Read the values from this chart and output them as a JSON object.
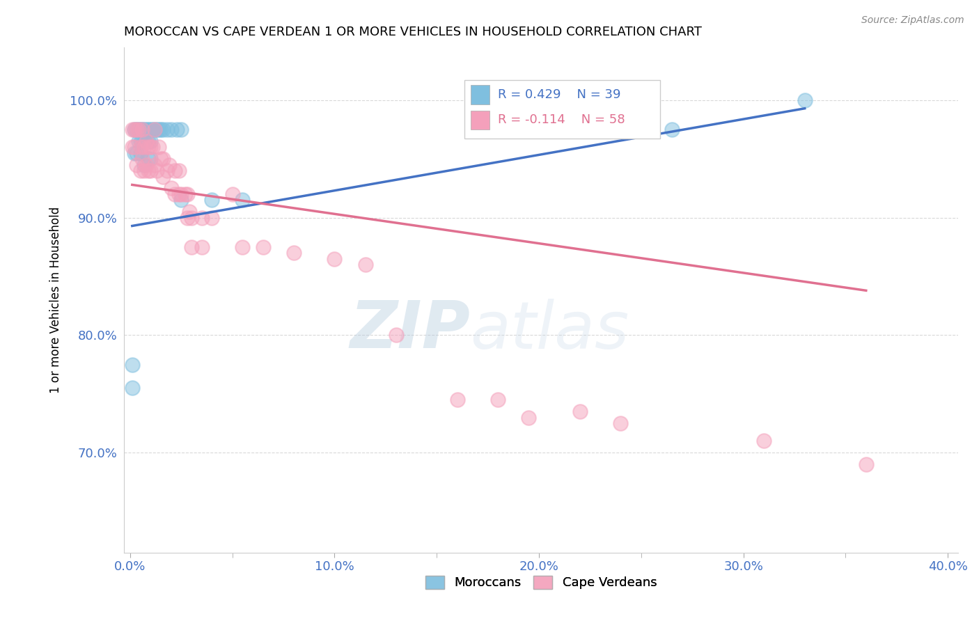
{
  "title": "MOROCCAN VS CAPE VERDEAN 1 OR MORE VEHICLES IN HOUSEHOLD CORRELATION CHART",
  "source": "Source: ZipAtlas.com",
  "xlabel_ticks": [
    "0.0%",
    "",
    "",
    "",
    "",
    "10.0%",
    "",
    "",
    "",
    "",
    "20.0%",
    "",
    "",
    "",
    "",
    "30.0%",
    "",
    "",
    "",
    "",
    "40.0%"
  ],
  "xlabel_tick_vals": [
    0.0,
    0.02,
    0.04,
    0.06,
    0.08,
    0.1,
    0.12,
    0.14,
    0.16,
    0.18,
    0.2,
    0.22,
    0.24,
    0.26,
    0.28,
    0.3,
    0.32,
    0.34,
    0.36,
    0.38,
    0.4
  ],
  "xlabel_major_ticks": [
    "0.0%",
    "10.0%",
    "20.0%",
    "30.0%",
    "40.0%"
  ],
  "xlabel_major_tick_vals": [
    0.0,
    0.1,
    0.2,
    0.3,
    0.4
  ],
  "ylabel_ticks": [
    "70.0%",
    "80.0%",
    "90.0%",
    "100.0%"
  ],
  "ylabel_tick_vals": [
    0.7,
    0.8,
    0.9,
    1.0
  ],
  "ylabel": "1 or more Vehicles in Household",
  "xlim": [
    -0.003,
    0.405
  ],
  "ylim": [
    0.615,
    1.045
  ],
  "moroccan_R": 0.429,
  "moroccan_N": 39,
  "capeverdean_R": -0.114,
  "capeverdean_N": 58,
  "moroccan_color": "#7fbfdf",
  "capeverdean_color": "#f4a0bb",
  "moroccan_line_color": "#4472c4",
  "capeverdean_line_color": "#e07090",
  "watermark_zip": "ZIP",
  "watermark_atlas": "atlas",
  "moroccan_x": [
    0.001,
    0.001,
    0.002,
    0.002,
    0.003,
    0.003,
    0.004,
    0.004,
    0.005,
    0.005,
    0.005,
    0.006,
    0.006,
    0.007,
    0.007,
    0.007,
    0.008,
    0.008,
    0.009,
    0.009,
    0.009,
    0.01,
    0.01,
    0.01,
    0.011,
    0.012,
    0.013,
    0.014,
    0.015,
    0.016,
    0.018,
    0.02,
    0.025,
    0.04,
    0.055,
    0.025,
    0.023,
    0.265,
    0.33
  ],
  "moroccan_y": [
    0.775,
    0.755,
    0.975,
    0.955,
    0.975,
    0.955,
    0.975,
    0.965,
    0.975,
    0.965,
    0.955,
    0.975,
    0.965,
    0.975,
    0.965,
    0.945,
    0.975,
    0.965,
    0.975,
    0.965,
    0.95,
    0.975,
    0.965,
    0.95,
    0.975,
    0.975,
    0.975,
    0.975,
    0.975,
    0.975,
    0.975,
    0.975,
    0.915,
    0.915,
    0.915,
    0.975,
    0.975,
    0.975,
    1.0
  ],
  "capeverdean_x": [
    0.001,
    0.001,
    0.002,
    0.002,
    0.003,
    0.003,
    0.004,
    0.005,
    0.005,
    0.006,
    0.006,
    0.007,
    0.007,
    0.008,
    0.008,
    0.009,
    0.009,
    0.01,
    0.01,
    0.011,
    0.012,
    0.012,
    0.013,
    0.014,
    0.015,
    0.016,
    0.016,
    0.018,
    0.019,
    0.02,
    0.022,
    0.022,
    0.024,
    0.024,
    0.025,
    0.027,
    0.028,
    0.028,
    0.029,
    0.03,
    0.03,
    0.035,
    0.035,
    0.04,
    0.05,
    0.055,
    0.065,
    0.08,
    0.1,
    0.115,
    0.13,
    0.16,
    0.18,
    0.195,
    0.22,
    0.24,
    0.31,
    0.36
  ],
  "capeverdean_y": [
    0.975,
    0.96,
    0.975,
    0.96,
    0.975,
    0.945,
    0.975,
    0.96,
    0.94,
    0.975,
    0.95,
    0.96,
    0.94,
    0.965,
    0.945,
    0.96,
    0.94,
    0.96,
    0.94,
    0.96,
    0.975,
    0.945,
    0.94,
    0.96,
    0.95,
    0.95,
    0.935,
    0.94,
    0.945,
    0.925,
    0.94,
    0.92,
    0.94,
    0.92,
    0.92,
    0.92,
    0.92,
    0.9,
    0.905,
    0.9,
    0.875,
    0.9,
    0.875,
    0.9,
    0.92,
    0.875,
    0.875,
    0.87,
    0.865,
    0.86,
    0.8,
    0.745,
    0.745,
    0.73,
    0.735,
    0.725,
    0.71,
    0.69
  ],
  "moroccan_trendline_x": [
    0.001,
    0.33
  ],
  "moroccan_trendline_y": [
    0.893,
    0.993
  ],
  "capeverdean_trendline_x": [
    0.001,
    0.36
  ],
  "capeverdean_trendline_y": [
    0.928,
    0.838
  ]
}
